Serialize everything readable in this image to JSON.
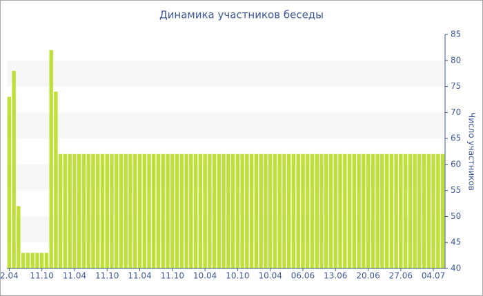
{
  "chart_data": {
    "type": "bar",
    "title": "Динамика участников беседы",
    "y_label": "Число участников",
    "categories": [
      "2.04",
      null,
      null,
      null,
      null,
      null,
      null,
      "11.10",
      null,
      null,
      null,
      null,
      null,
      null,
      "11.04",
      null,
      null,
      null,
      null,
      null,
      null,
      "11.10",
      null,
      null,
      null,
      null,
      null,
      null,
      "11.04",
      null,
      null,
      null,
      null,
      null,
      null,
      "11.10",
      null,
      null,
      null,
      null,
      null,
      null,
      "10.04",
      null,
      null,
      null,
      null,
      null,
      null,
      "10.10",
      null,
      null,
      null,
      null,
      null,
      null,
      "10.04",
      null,
      null,
      null,
      null,
      null,
      null,
      "06.06",
      null,
      null,
      null,
      null,
      null,
      null,
      "13.06",
      null,
      null,
      null,
      null,
      null,
      null,
      "20.06",
      null,
      null,
      null,
      null,
      null,
      null,
      "27.06",
      null,
      null,
      null,
      null,
      null,
      null,
      "04.07",
      null,
      null
    ],
    "values": [
      73,
      78,
      52,
      43,
      43,
      43,
      43,
      43,
      43,
      82,
      74,
      62,
      62,
      62,
      62,
      62,
      62,
      62,
      62,
      62,
      62,
      62,
      62,
      62,
      62,
      62,
      62,
      62,
      62,
      62,
      62,
      62,
      62,
      62,
      62,
      62,
      62,
      62,
      62,
      62,
      62,
      62,
      62,
      62,
      62,
      62,
      62,
      62,
      62,
      62,
      62,
      62,
      62,
      62,
      62,
      62,
      62,
      62,
      62,
      62,
      62,
      62,
      62,
      62,
      62,
      62,
      62,
      62,
      62,
      62,
      62,
      62,
      62,
      62,
      62,
      62,
      62,
      62,
      62,
      62,
      62,
      62,
      62,
      62,
      62,
      62,
      62,
      62,
      62,
      62,
      62,
      62,
      62,
      62
    ],
    "color": "#bfe03a",
    "ylim": [
      40,
      85
    ],
    "yticks": [
      40,
      45,
      50,
      55,
      60,
      65,
      70,
      75,
      80,
      85
    ],
    "grid": true
  }
}
